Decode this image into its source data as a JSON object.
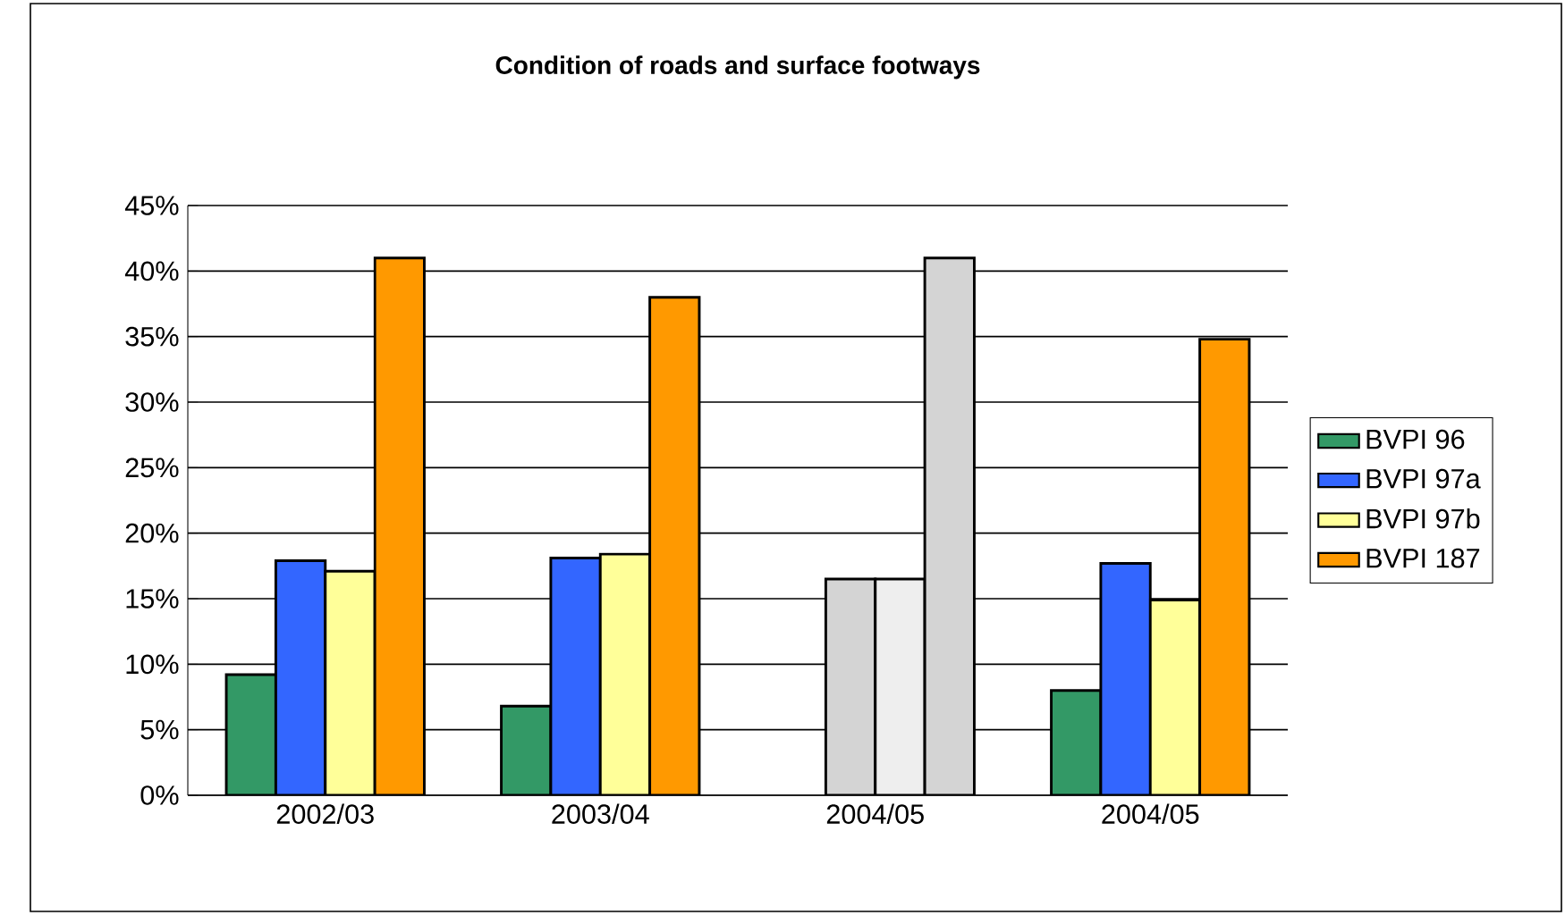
{
  "chart_data": {
    "type": "bar",
    "title": "Condition of roads and surface footways",
    "categories": [
      "2002/03",
      "2003/04",
      "2004/05",
      "2004/05"
    ],
    "series": [
      {
        "name": "BVPI 96",
        "color": "#339966",
        "values": [
          9.2,
          6.8,
          null,
          8.0
        ]
      },
      {
        "name": "BVPI 97a",
        "color": "#3366ff",
        "colors": [
          "#3366ff",
          "#3366ff",
          "#d4d4d4",
          "#3366ff"
        ],
        "values": [
          17.9,
          18.1,
          16.5,
          17.7
        ]
      },
      {
        "name": "BVPI 97b",
        "color": "#ffff99",
        "colors": [
          "#ffff99",
          "#ffff99",
          "#eeeeee",
          "#ffff99"
        ],
        "values": [
          17.1,
          18.4,
          16.5,
          14.9
        ]
      },
      {
        "name": "BVPI 187",
        "color": "#ff9900",
        "colors": [
          "#ff9900",
          "#ff9900",
          "#d4d4d4",
          "#ff9900"
        ],
        "values": [
          41.0,
          38.0,
          41.0,
          34.8
        ]
      }
    ],
    "ylim": [
      0,
      45
    ],
    "yticks": [
      {
        "value": 0,
        "label": "0%"
      },
      {
        "value": 5,
        "label": "5%"
      },
      {
        "value": 10,
        "label": "10%"
      },
      {
        "value": 15,
        "label": "15%"
      },
      {
        "value": 20,
        "label": "20%"
      },
      {
        "value": 25,
        "label": "25%"
      },
      {
        "value": 30,
        "label": "30%"
      },
      {
        "value": 35,
        "label": "35%"
      },
      {
        "value": 40,
        "label": "40%"
      },
      {
        "value": 45,
        "label": "45%"
      }
    ],
    "grid": "y",
    "legend": "right"
  }
}
